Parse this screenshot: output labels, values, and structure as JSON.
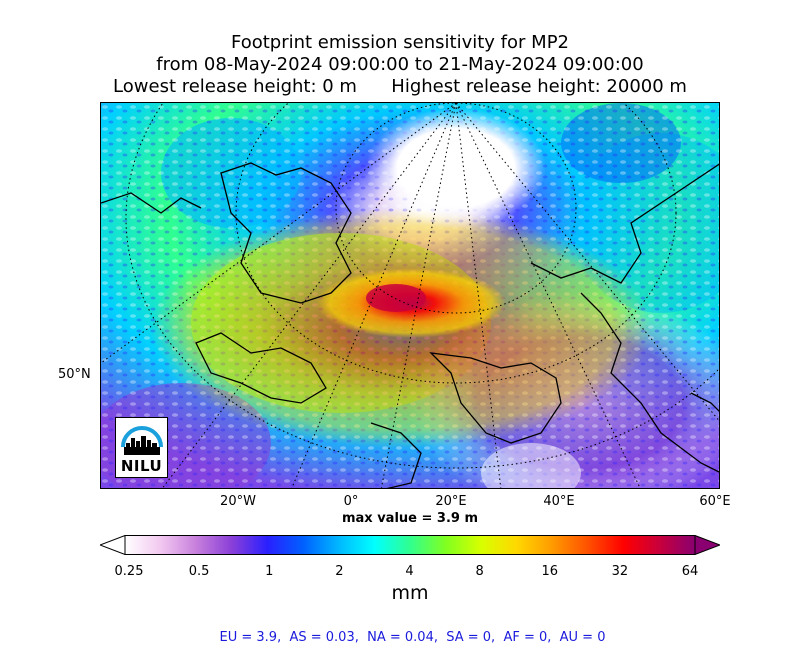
{
  "title": {
    "line1": "Footprint emission sensitivity for MP2",
    "line2": "from 08-May-2024 09:00:00 to 21-May-2024 09:00:00",
    "line3_left": "Lowest release height: 0 m",
    "line3_right": "Highest release height: 20000 m"
  },
  "axes": {
    "lat_labels": [
      "50°N"
    ],
    "lon_labels": [
      "20°W",
      "0°",
      "20°E",
      "40°E",
      "60°E"
    ]
  },
  "max_value": "max value = 3.9 m",
  "colorbar": {
    "tick_labels": [
      "0.25",
      "0.5",
      "1",
      "2",
      "4",
      "8",
      "16",
      "32",
      "64"
    ],
    "unit": "mm",
    "colors": [
      "#ffffff",
      "#f2c8f0",
      "#c77fdc",
      "#8a3fd8",
      "#2a20ff",
      "#0060ff",
      "#00b8ff",
      "#00ffff",
      "#30ff90",
      "#80ff20",
      "#d8ff00",
      "#ffd800",
      "#ff9a00",
      "#ff5000",
      "#ff0000",
      "#c8003c",
      "#8a0070"
    ]
  },
  "logo": {
    "text": "NILU",
    "arc_color": "#1aa0dc"
  },
  "footer": "EU = 3.9,  AS = 0.03,  NA = 0.04,  SA = 0,  AF = 0,  AU = 0"
}
